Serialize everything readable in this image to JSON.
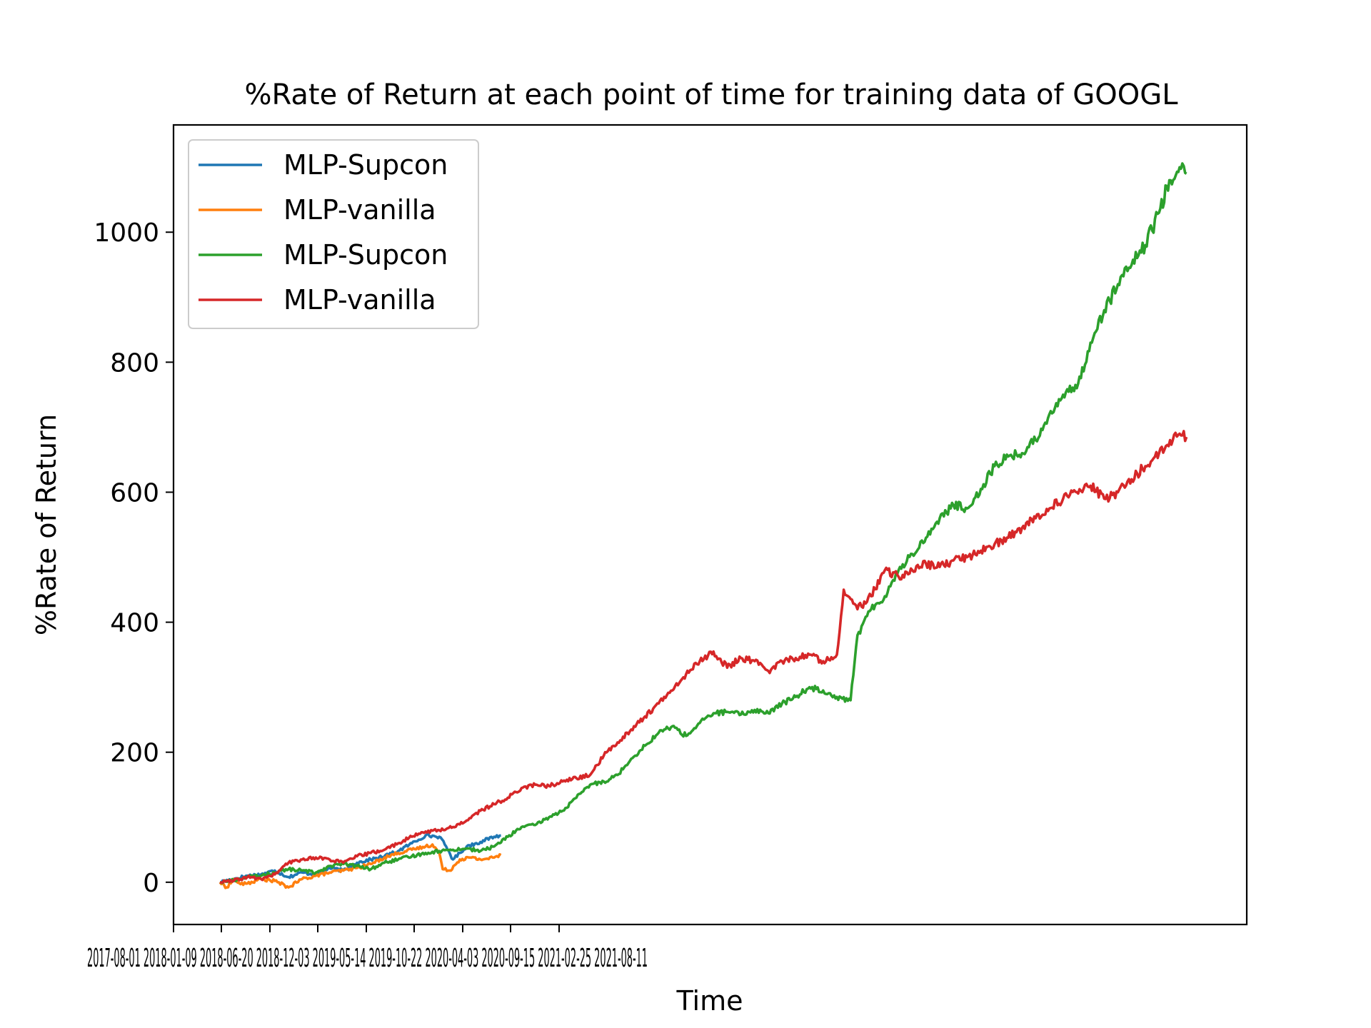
{
  "chart_data": {
    "type": "line",
    "title": "%Rate of Return at each point of time for training data of GOOGL",
    "xlabel": "Time",
    "ylabel": "%Rate of Return",
    "ylim": [
      -65,
      1165
    ],
    "y_ticks": [
      0,
      200,
      400,
      600,
      800,
      1000
    ],
    "x_tick_labels": [
      "2017-08-01",
      "2018-01-09",
      "2018-06-20",
      "2018-12-03",
      "2019-05-14",
      "2019-10-22",
      "2020-04-03",
      "2020-09-15",
      "2021-02-25",
      "2021-08-11"
    ],
    "x_tick_text": "2017-08-01 2018-01-09 2018-06-20 2018-12-03 2019-05-14 2019-10-22 2020-04-03 2020-09-15 2021-02-25 2021-08-11",
    "legend": {
      "position": "upper left",
      "entries": [
        "MLP-Supcon",
        "MLP-vanilla",
        "MLP-Supcon",
        "MLP-vanilla"
      ]
    },
    "grid": false,
    "series": [
      {
        "name": "MLP-Supcon",
        "color": "#1f77b4",
        "points": [
          [
            0,
            0
          ],
          [
            20,
            5
          ],
          [
            40,
            10
          ],
          [
            60,
            12
          ],
          [
            80,
            18
          ],
          [
            100,
            8
          ],
          [
            120,
            15
          ],
          [
            140,
            12
          ],
          [
            160,
            22
          ],
          [
            180,
            18
          ],
          [
            200,
            30
          ],
          [
            220,
            35
          ],
          [
            240,
            40
          ],
          [
            260,
            48
          ],
          [
            280,
            60
          ],
          [
            300,
            72
          ],
          [
            320,
            70
          ],
          [
            330,
            55
          ],
          [
            340,
            35
          ],
          [
            350,
            45
          ],
          [
            360,
            55
          ],
          [
            380,
            62
          ],
          [
            400,
            70
          ],
          [
            410,
            72
          ]
        ]
      },
      {
        "name": "MLP-vanilla",
        "color": "#ff7f0e",
        "points": [
          [
            0,
            0
          ],
          [
            10,
            -8
          ],
          [
            20,
            5
          ],
          [
            30,
            -3
          ],
          [
            40,
            -2
          ],
          [
            60,
            5
          ],
          [
            80,
            2
          ],
          [
            100,
            -8
          ],
          [
            120,
            5
          ],
          [
            140,
            10
          ],
          [
            160,
            15
          ],
          [
            180,
            18
          ],
          [
            200,
            22
          ],
          [
            220,
            28
          ],
          [
            240,
            38
          ],
          [
            260,
            45
          ],
          [
            280,
            50
          ],
          [
            300,
            55
          ],
          [
            310,
            58
          ],
          [
            320,
            45
          ],
          [
            325,
            20
          ],
          [
            335,
            18
          ],
          [
            350,
            35
          ],
          [
            365,
            38
          ],
          [
            380,
            35
          ],
          [
            400,
            38
          ],
          [
            410,
            42
          ]
        ]
      },
      {
        "name": "MLP-Supcon",
        "color": "#2ca02c",
        "points": [
          [
            0,
            0
          ],
          [
            20,
            3
          ],
          [
            40,
            8
          ],
          [
            60,
            10
          ],
          [
            80,
            15
          ],
          [
            100,
            20
          ],
          [
            120,
            18
          ],
          [
            140,
            15
          ],
          [
            160,
            25
          ],
          [
            180,
            28
          ],
          [
            200,
            25
          ],
          [
            220,
            20
          ],
          [
            240,
            30
          ],
          [
            260,
            35
          ],
          [
            280,
            40
          ],
          [
            300,
            45
          ],
          [
            320,
            48
          ],
          [
            340,
            50
          ],
          [
            360,
            52
          ],
          [
            380,
            48
          ],
          [
            400,
            55
          ],
          [
            420,
            70
          ],
          [
            440,
            85
          ],
          [
            460,
            88
          ],
          [
            480,
            100
          ],
          [
            500,
            110
          ],
          [
            520,
            130
          ],
          [
            540,
            150
          ],
          [
            560,
            155
          ],
          [
            580,
            165
          ],
          [
            600,
            190
          ],
          [
            620,
            210
          ],
          [
            640,
            230
          ],
          [
            660,
            240
          ],
          [
            680,
            225
          ],
          [
            700,
            245
          ],
          [
            720,
            260
          ],
          [
            740,
            262
          ],
          [
            760,
            258
          ],
          [
            780,
            265
          ],
          [
            800,
            260
          ],
          [
            820,
            275
          ],
          [
            840,
            285
          ],
          [
            860,
            300
          ],
          [
            880,
            295
          ],
          [
            900,
            285
          ],
          [
            920,
            280
          ],
          [
            930,
            380
          ],
          [
            950,
            420
          ],
          [
            970,
            440
          ],
          [
            990,
            480
          ],
          [
            1010,
            505
          ],
          [
            1030,
            530
          ],
          [
            1050,
            560
          ],
          [
            1070,
            580
          ],
          [
            1090,
            575
          ],
          [
            1110,
            605
          ],
          [
            1130,
            640
          ],
          [
            1150,
            655
          ],
          [
            1170,
            660
          ],
          [
            1190,
            680
          ],
          [
            1210,
            720
          ],
          [
            1230,
            750
          ],
          [
            1250,
            760
          ],
          [
            1270,
            830
          ],
          [
            1290,
            880
          ],
          [
            1310,
            920
          ],
          [
            1330,
            950
          ],
          [
            1350,
            980
          ],
          [
            1370,
            1030
          ],
          [
            1385,
            1080
          ],
          [
            1400,
            1100
          ],
          [
            1410,
            1090
          ]
        ]
      },
      {
        "name": "MLP-vanilla",
        "color": "#d62728",
        "points": [
          [
            0,
            0
          ],
          [
            20,
            2
          ],
          [
            40,
            8
          ],
          [
            60,
            5
          ],
          [
            80,
            12
          ],
          [
            100,
            30
          ],
          [
            120,
            35
          ],
          [
            140,
            38
          ],
          [
            160,
            35
          ],
          [
            180,
            30
          ],
          [
            200,
            40
          ],
          [
            220,
            45
          ],
          [
            240,
            50
          ],
          [
            260,
            60
          ],
          [
            280,
            70
          ],
          [
            300,
            78
          ],
          [
            320,
            80
          ],
          [
            340,
            85
          ],
          [
            360,
            95
          ],
          [
            380,
            110
          ],
          [
            400,
            120
          ],
          [
            420,
            130
          ],
          [
            440,
            145
          ],
          [
            460,
            150
          ],
          [
            480,
            148
          ],
          [
            500,
            155
          ],
          [
            520,
            160
          ],
          [
            540,
            165
          ],
          [
            560,
            195
          ],
          [
            580,
            215
          ],
          [
            600,
            235
          ],
          [
            620,
            255
          ],
          [
            640,
            275
          ],
          [
            660,
            295
          ],
          [
            680,
            320
          ],
          [
            700,
            340
          ],
          [
            720,
            355
          ],
          [
            740,
            330
          ],
          [
            760,
            345
          ],
          [
            780,
            340
          ],
          [
            800,
            325
          ],
          [
            820,
            340
          ],
          [
            840,
            345
          ],
          [
            860,
            350
          ],
          [
            880,
            340
          ],
          [
            900,
            350
          ],
          [
            910,
            450
          ],
          [
            930,
            420
          ],
          [
            950,
            440
          ],
          [
            970,
            480
          ],
          [
            990,
            470
          ],
          [
            1010,
            480
          ],
          [
            1030,
            490
          ],
          [
            1050,
            485
          ],
          [
            1070,
            495
          ],
          [
            1090,
            500
          ],
          [
            1110,
            510
          ],
          [
            1130,
            520
          ],
          [
            1150,
            530
          ],
          [
            1170,
            545
          ],
          [
            1190,
            560
          ],
          [
            1210,
            575
          ],
          [
            1230,
            590
          ],
          [
            1250,
            600
          ],
          [
            1270,
            610
          ],
          [
            1290,
            590
          ],
          [
            1310,
            600
          ],
          [
            1330,
            620
          ],
          [
            1350,
            640
          ],
          [
            1370,
            660
          ],
          [
            1390,
            680
          ],
          [
            1400,
            690
          ],
          [
            1410,
            685
          ]
        ]
      }
    ]
  }
}
